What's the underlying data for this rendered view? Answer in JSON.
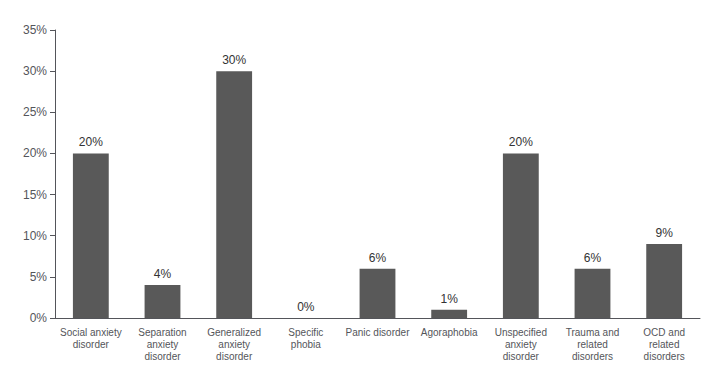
{
  "chart_data": {
    "type": "bar",
    "categories": [
      "Social anxiety\ndisorder",
      "Separation\nanxiety\ndisorder",
      "Generalized\nanxiety\ndisorder",
      "Specific\nphobia",
      "Panic disorder",
      "Agoraphobia",
      "Unspecified\nanxiety\ndisorder",
      "Trauma and\nrelated\ndisorders",
      "OCD and\nrelated\ndisorders"
    ],
    "values": [
      20,
      4,
      30,
      0,
      6,
      1,
      20,
      6,
      9
    ],
    "value_labels": [
      "20%",
      "4%",
      "30%",
      "0%",
      "6%",
      "1%",
      "20%",
      "6%",
      "9%"
    ],
    "color": "#595959",
    "ylim": [
      0,
      35
    ],
    "yticks": [
      {
        "value": 0,
        "label": "0%"
      },
      {
        "value": 5,
        "label": "5%"
      },
      {
        "value": 10,
        "label": "10%"
      },
      {
        "value": 15,
        "label": "15%"
      },
      {
        "value": 20,
        "label": "20%"
      },
      {
        "value": 25,
        "label": "25%"
      },
      {
        "value": 30,
        "label": "30%"
      },
      {
        "value": 35,
        "label": "35%"
      }
    ],
    "grid": false,
    "data_labels": true
  }
}
